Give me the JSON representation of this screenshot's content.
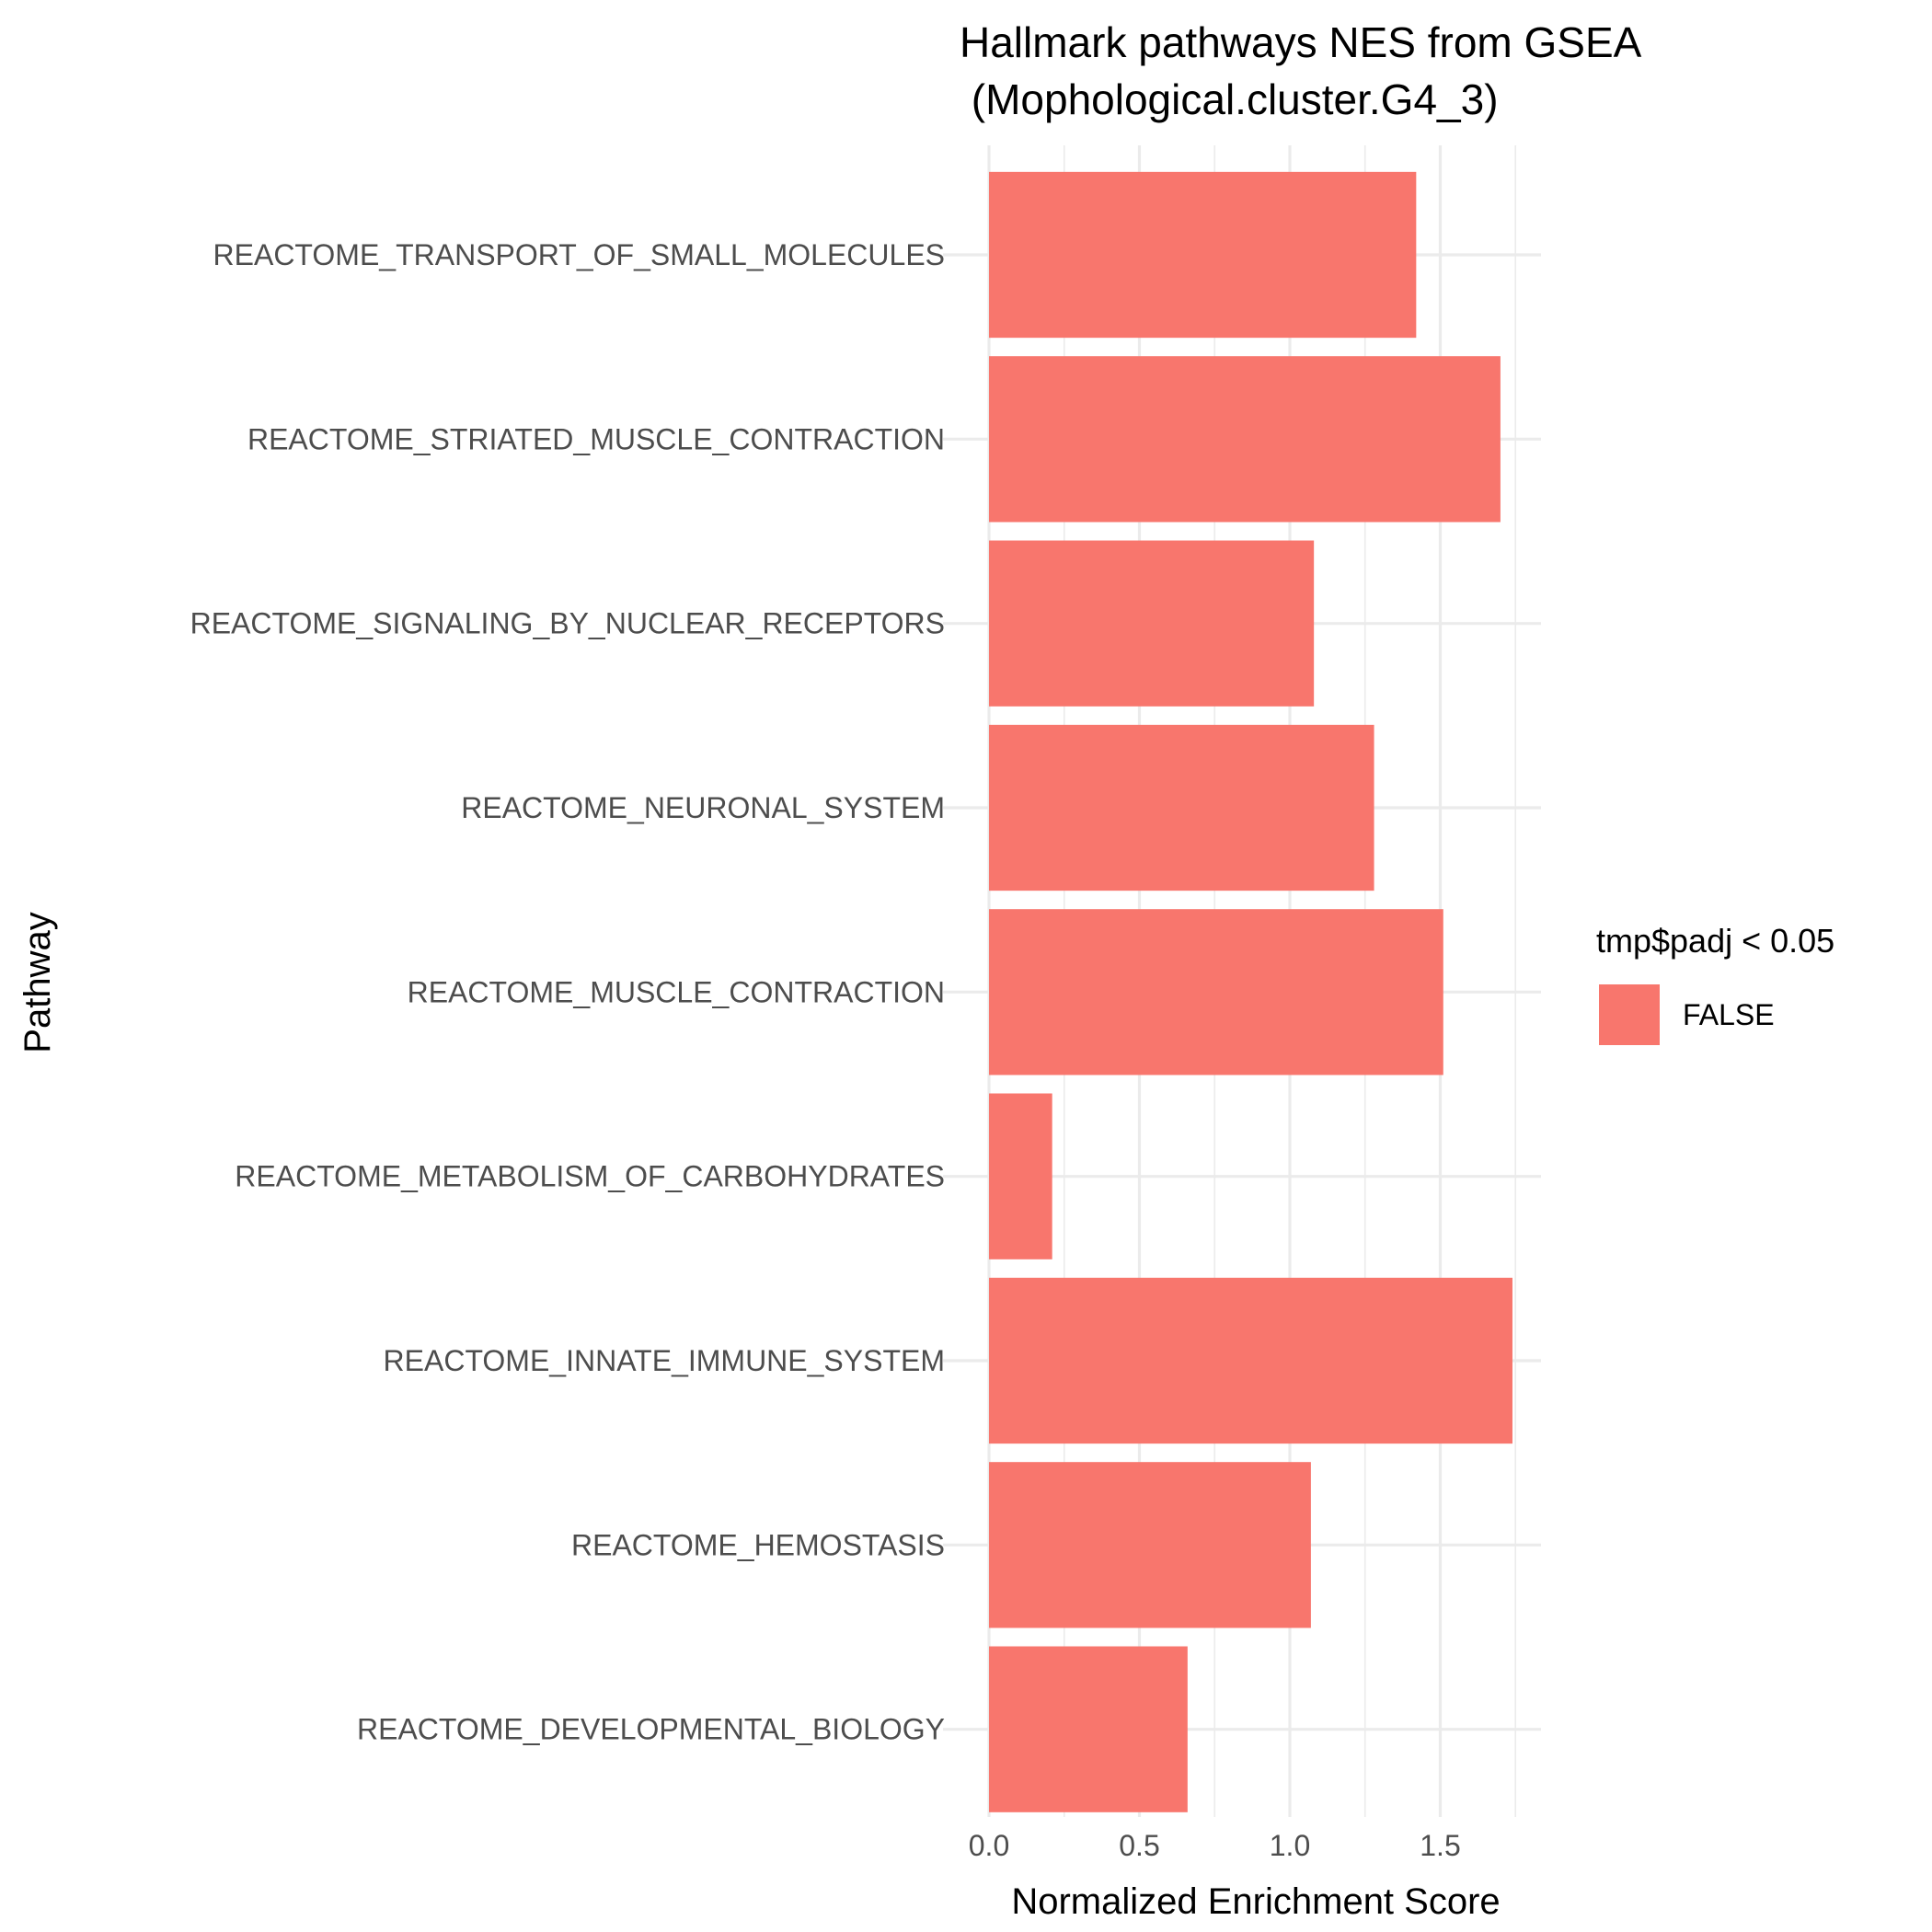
{
  "chart_data": {
    "type": "bar",
    "orientation": "horizontal",
    "title_lines": [
      "Hallmark pathways NES from GSEA",
      " (Mophological.cluster.G4_3)"
    ],
    "xlabel": "Normalized Enrichment Score",
    "ylabel": "Pathway",
    "xlim": [
      0,
      1.83
    ],
    "xticks": [
      0.0,
      0.5,
      1.0,
      1.5
    ],
    "xtick_labels": [
      "0.0",
      "0.5",
      "1.0",
      "1.5"
    ],
    "grid": true,
    "categories": [
      "REACTOME_TRANSPORT_OF_SMALL_MOLECULES",
      "REACTOME_STRIATED_MUSCLE_CONTRACTION",
      "REACTOME_SIGNALING_BY_NUCLEAR_RECEPTORS",
      "REACTOME_NEURONAL_SYSTEM",
      "REACTOME_MUSCLE_CONTRACTION",
      "REACTOME_METABOLISM_OF_CARBOHYDRATES",
      "REACTOME_INNATE_IMMUNE_SYSTEM",
      "REACTOME_HEMOSTASIS",
      "REACTOME_DEVELOPMENTAL_BIOLOGY"
    ],
    "values": [
      1.42,
      1.7,
      1.08,
      1.28,
      1.51,
      0.21,
      1.74,
      1.07,
      0.66
    ],
    "bar_color": "#F8766D",
    "legend": {
      "title": "tmp$padj < 0.05",
      "entries": [
        {
          "label": "FALSE",
          "color": "#F8766D"
        }
      ],
      "placement": "right"
    }
  }
}
